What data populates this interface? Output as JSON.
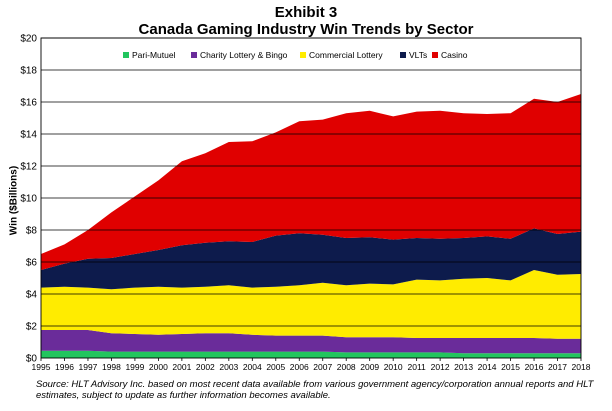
{
  "exhibit_label": "Exhibit 3",
  "chart_data": {
    "type": "area",
    "stacked": true,
    "title": "Canada Gaming Industry Win Trends by Sector",
    "ylabel": "Win ($Billions)",
    "xlabel": "",
    "ylim": [
      0,
      20
    ],
    "y_ticks": [
      "$0",
      "$2",
      "$4",
      "$6",
      "$8",
      "$10",
      "$12",
      "$14",
      "$16",
      "$18",
      "$20"
    ],
    "grid": true,
    "legend_position": "top",
    "categories": [
      "1995",
      "1996",
      "1997",
      "1998",
      "1999",
      "2000",
      "2001",
      "2002",
      "2003",
      "2004",
      "2005",
      "2006",
      "2007",
      "2008",
      "2009",
      "2010",
      "2011",
      "2012",
      "2013",
      "2014",
      "2015",
      "2016",
      "2017",
      "2018"
    ],
    "series": [
      {
        "name": "Pari-Mutuel",
        "color": "#22c55e",
        "values": [
          0.45,
          0.45,
          0.45,
          0.4,
          0.4,
          0.4,
          0.4,
          0.4,
          0.4,
          0.4,
          0.4,
          0.4,
          0.4,
          0.35,
          0.35,
          0.35,
          0.35,
          0.35,
          0.3,
          0.3,
          0.3,
          0.3,
          0.3,
          0.3
        ]
      },
      {
        "name": "Charity Lottery & Bingo",
        "color": "#6a2c9a",
        "values": [
          1.3,
          1.3,
          1.3,
          1.15,
          1.1,
          1.05,
          1.1,
          1.15,
          1.15,
          1.05,
          1.0,
          1.0,
          1.0,
          0.95,
          0.95,
          0.95,
          0.9,
          0.9,
          0.95,
          0.95,
          0.95,
          0.95,
          0.9,
          0.9
        ]
      },
      {
        "name": "Commercial Lottery",
        "color": "#ffec00",
        "values": [
          2.65,
          2.7,
          2.65,
          2.75,
          2.9,
          3.0,
          2.9,
          2.9,
          3.0,
          2.95,
          3.05,
          3.15,
          3.3,
          3.25,
          3.35,
          3.3,
          3.65,
          3.6,
          3.7,
          3.75,
          3.6,
          4.25,
          4.0,
          4.05
        ]
      },
      {
        "name": "VLTs",
        "color": "#0d1b4c",
        "values": [
          1.1,
          1.45,
          1.8,
          1.95,
          2.1,
          2.3,
          2.65,
          2.75,
          2.75,
          2.85,
          3.2,
          3.25,
          3.0,
          2.95,
          2.9,
          2.8,
          2.6,
          2.6,
          2.55,
          2.6,
          2.6,
          2.6,
          2.55,
          2.65
        ]
      },
      {
        "name": "Casino",
        "color": "#e00000",
        "values": [
          1.0,
          1.2,
          1.8,
          2.85,
          3.6,
          4.35,
          5.25,
          5.6,
          6.2,
          6.3,
          6.45,
          7.0,
          7.2,
          7.8,
          7.9,
          7.7,
          7.9,
          8.0,
          7.8,
          7.65,
          7.85,
          8.1,
          8.25,
          8.6
        ]
      }
    ]
  },
  "source_note": "Source: HLT Advisory Inc. based on most recent data available from various government agency/corporation annual reports and HLT estimates, subject to update as further information becomes available."
}
